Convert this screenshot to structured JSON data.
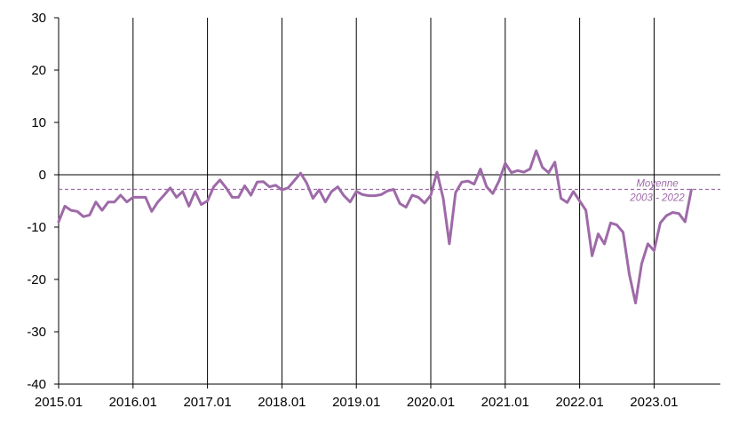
{
  "chart_data": {
    "type": "line",
    "title": "",
    "xlabel": "",
    "ylabel": "",
    "ylim": [
      -40,
      30
    ],
    "yticks": [
      30,
      20,
      10,
      0,
      -10,
      -20,
      -30,
      -40
    ],
    "x_tick_labels": [
      "2015.01",
      "2016.01",
      "2017.01",
      "2018.01",
      "2019.01",
      "2020.01",
      "2021.01",
      "2022.01",
      "2023.01"
    ],
    "x_start": "2015.01",
    "grid": "vertical lines at each January",
    "series": [
      {
        "color": "#9e6aa8",
        "values": [
          -9.0,
          -6.0,
          -6.8,
          -7.0,
          -8.0,
          -7.7,
          -5.2,
          -6.8,
          -5.2,
          -5.2,
          -3.9,
          -5.2,
          -4.3,
          -4.3,
          -4.3,
          -7.0,
          -5.2,
          -3.9,
          -2.5,
          -4.3,
          -3.2,
          -6.0,
          -3.2,
          -5.7,
          -5.0,
          -2.3,
          -1.0,
          -2.5,
          -4.3,
          -4.3,
          -2.1,
          -3.9,
          -1.4,
          -1.3,
          -2.3,
          -2.0,
          -2.9,
          -2.5,
          -1.1,
          0.3,
          -1.6,
          -4.5,
          -2.9,
          -5.2,
          -3.2,
          -2.3,
          -4.0,
          -5.2,
          -3.2,
          -3.8,
          -4.0,
          -4.0,
          -3.8,
          -3.1,
          -2.8,
          -5.5,
          -6.2,
          -3.9,
          -4.3,
          -5.4,
          -3.9,
          0.5,
          -4.5,
          -13.2,
          -3.4,
          -1.4,
          -1.2,
          -1.8,
          1.1,
          -2.3,
          -3.6,
          -1.2,
          2.2,
          0.4,
          0.8,
          0.5,
          1.1,
          4.6,
          1.4,
          0.4,
          2.4,
          -4.5,
          -5.3,
          -3.2,
          -5.0,
          -6.8,
          -15.5,
          -11.3,
          -13.2,
          -9.2,
          -9.6,
          -11.0,
          -19.0,
          -24.5,
          -17.0,
          -13.2,
          -14.5,
          -9.2,
          -7.8,
          -7.2,
          -7.4,
          -9.0,
          -2.9
        ]
      }
    ],
    "reference_line": {
      "value": -2.8,
      "label_line1": "Moyenne",
      "label_line2": "2003 - 2022",
      "color": "#9e6aa8"
    }
  }
}
